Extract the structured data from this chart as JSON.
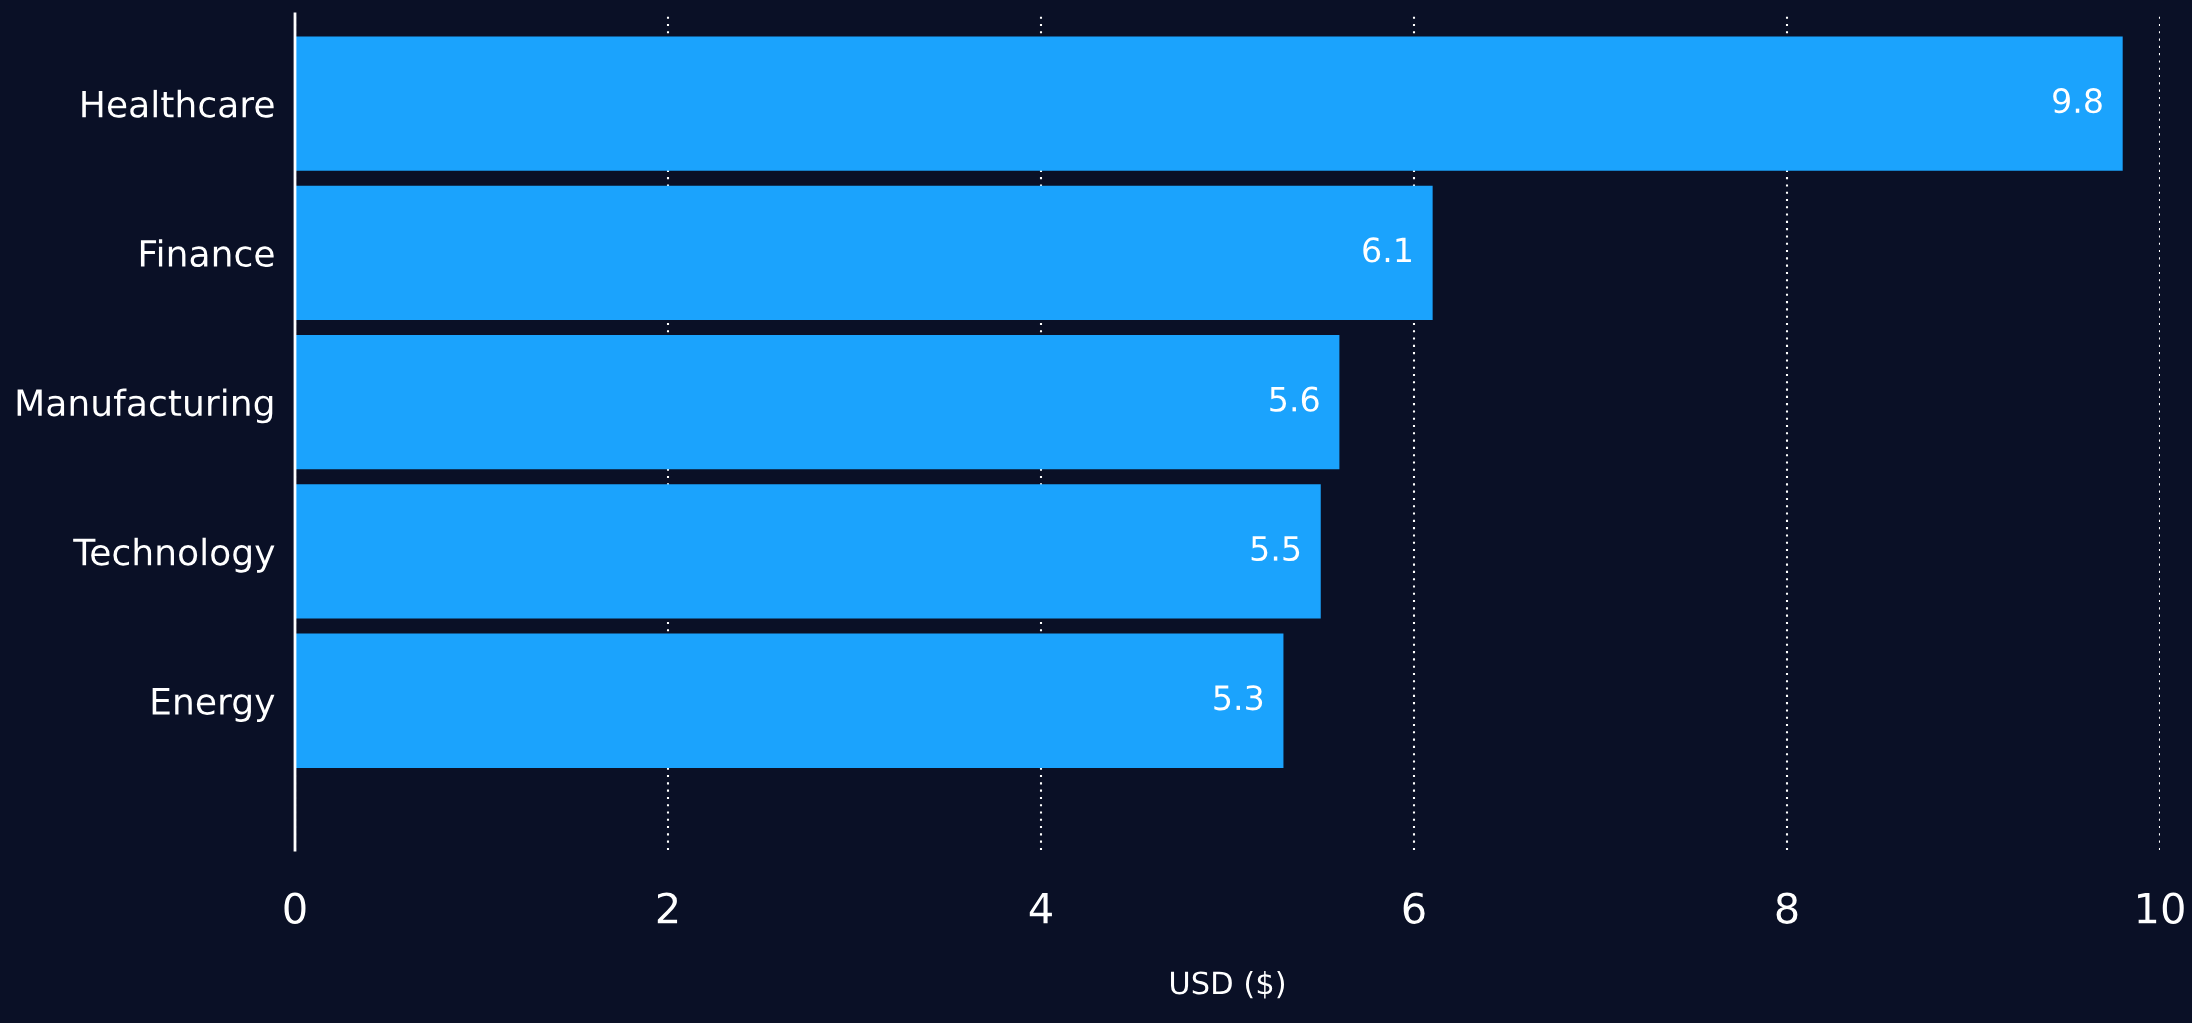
{
  "chart_data": {
    "type": "bar",
    "orientation": "horizontal",
    "xlabel": "USD ($)",
    "categories": [
      "Healthcare",
      "Finance",
      "Manufacturing",
      "Technology",
      "Energy"
    ],
    "values": [
      9.8,
      6.1,
      5.6,
      5.5,
      5.3
    ],
    "color": "#1ba3fd",
    "xlim": [
      0,
      10
    ],
    "xticks": [
      0,
      2,
      4,
      6,
      8,
      10
    ],
    "grid": "x",
    "data_labels": true
  }
}
